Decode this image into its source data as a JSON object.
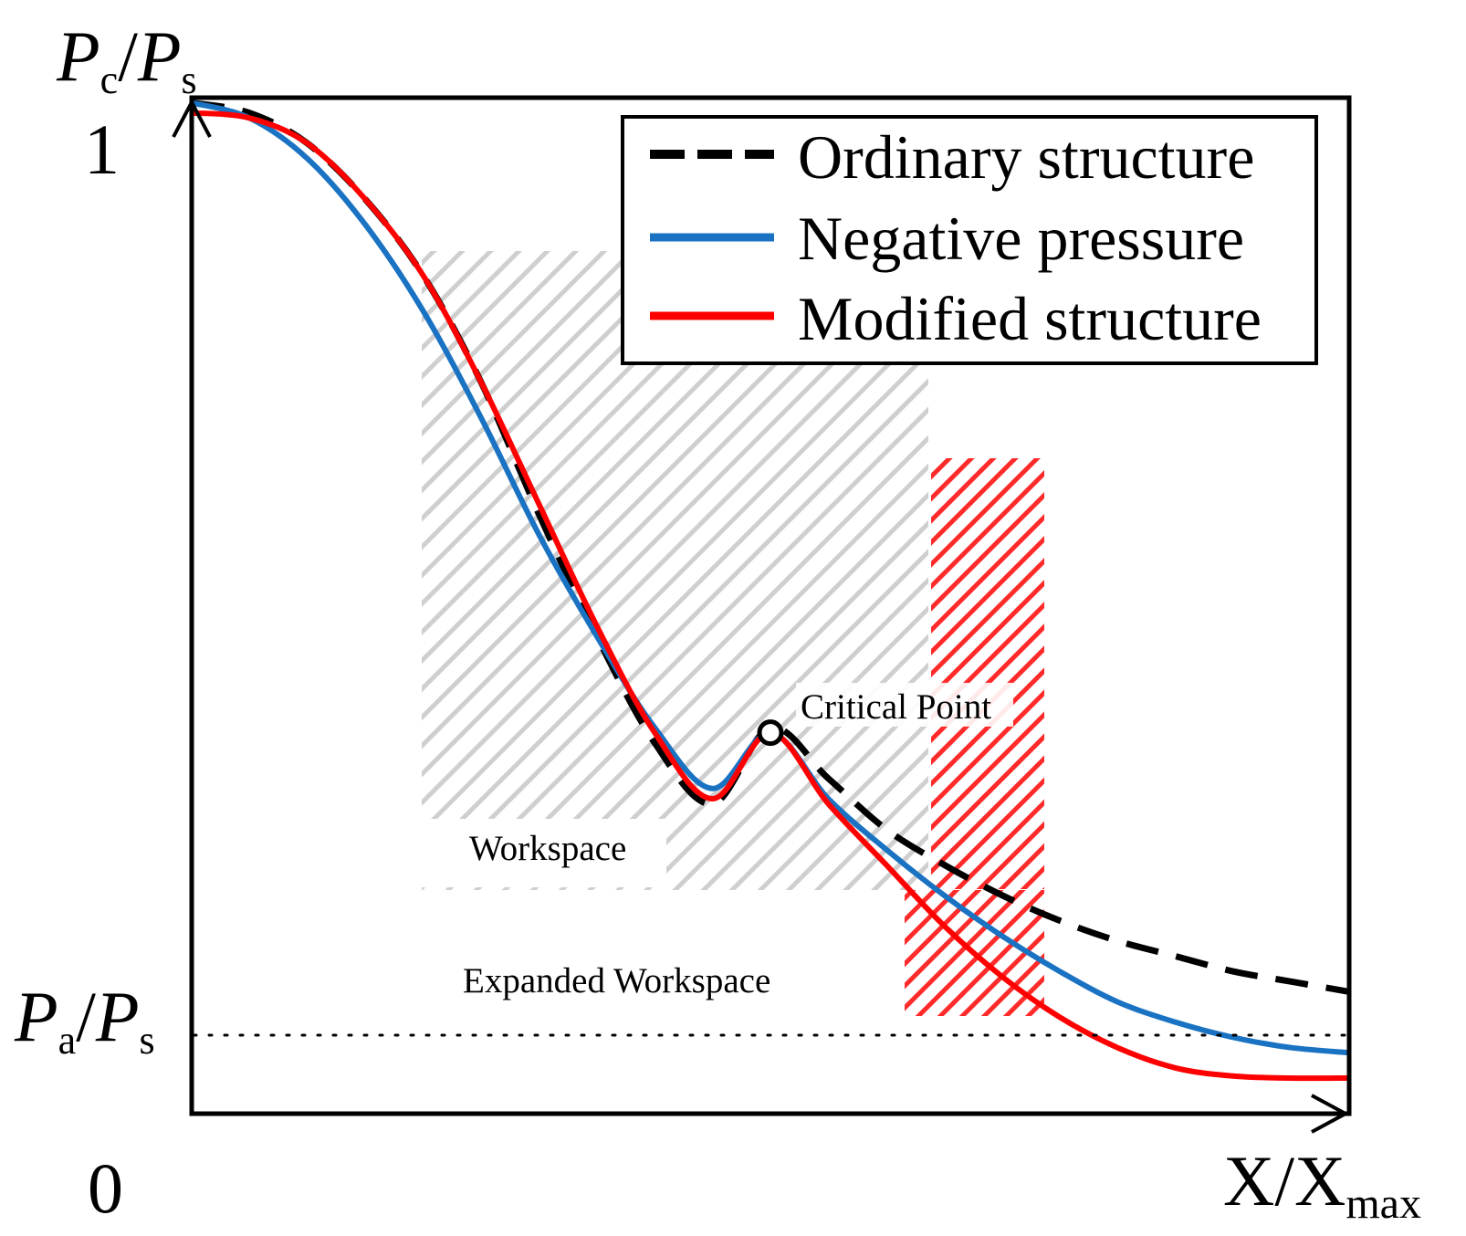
{
  "chart_data": {
    "type": "line",
    "title": "",
    "xlabel": "X/X",
    "xlabel_sub": "max",
    "ylabel_main": "P",
    "ylabel_sub": "c",
    "ylabel_slash": "/",
    "ylabel_main2": "P",
    "ylabel_sub2": "s",
    "xlim": [
      0,
      1
    ],
    "ylim": [
      0,
      1
    ],
    "y_tick_top": "1",
    "origin_label": "0",
    "reference_line": {
      "label_main": "P",
      "label_sub": "a",
      "label_slash": "/",
      "label_main2": "P",
      "label_sub2": "s",
      "y": 0.081,
      "style": "dotted"
    },
    "legend": {
      "placement": "top-right",
      "entries": [
        "Ordinary structure",
        "Negative pressure",
        "Modified structure"
      ]
    },
    "series": [
      {
        "name": "Ordinary structure",
        "color": "#000000",
        "dash": "dashed",
        "x": [
          0,
          0.05,
          0.1,
          0.15,
          0.2,
          0.25,
          0.3,
          0.35,
          0.4,
          0.45,
          0.5,
          0.55,
          0.6,
          0.65,
          0.7,
          0.75,
          0.8,
          0.85,
          0.9,
          0.95,
          1.0
        ],
        "y": [
          0.995,
          0.985,
          0.955,
          0.9,
          0.825,
          0.72,
          0.59,
          0.47,
          0.365,
          0.305,
          0.38,
          0.33,
          0.28,
          0.245,
          0.215,
          0.19,
          0.17,
          0.155,
          0.14,
          0.13,
          0.12
        ]
      },
      {
        "name": "Negative pressure",
        "color": "#1a72c2",
        "dash": "solid",
        "x": [
          0,
          0.05,
          0.1,
          0.15,
          0.2,
          0.25,
          0.3,
          0.35,
          0.4,
          0.45,
          0.5,
          0.55,
          0.6,
          0.65,
          0.7,
          0.75,
          0.8,
          0.85,
          0.9,
          0.95,
          1.0
        ],
        "y": [
          0.995,
          0.98,
          0.94,
          0.875,
          0.79,
          0.685,
          0.57,
          0.47,
          0.38,
          0.32,
          0.375,
          0.31,
          0.26,
          0.215,
          0.175,
          0.14,
          0.11,
          0.09,
          0.075,
          0.065,
          0.06
        ]
      },
      {
        "name": "Modified structure",
        "color": "#ff0000",
        "dash": "solid",
        "x": [
          0,
          0.05,
          0.1,
          0.15,
          0.2,
          0.25,
          0.3,
          0.35,
          0.4,
          0.45,
          0.5,
          0.55,
          0.6,
          0.65,
          0.7,
          0.75,
          0.8,
          0.85,
          0.9,
          0.95,
          1.0
        ],
        "y": [
          0.985,
          0.98,
          0.955,
          0.9,
          0.825,
          0.72,
          0.6,
          0.48,
          0.375,
          0.31,
          0.375,
          0.305,
          0.245,
          0.185,
          0.135,
          0.095,
          0.065,
          0.045,
          0.037,
          0.035,
          0.035
        ]
      }
    ],
    "critical_point": {
      "label": "Critical Point",
      "x": 0.5,
      "y": 0.375
    },
    "regions": [
      {
        "label": "Workspace",
        "x": [
          0.2,
          0.64
        ],
        "y": [
          0.23,
          0.88
        ],
        "color": "#c8c8c8"
      },
      {
        "label": "Expanded Workspace",
        "x": [
          0.62,
          0.74
        ],
        "y": [
          0.1,
          0.67
        ],
        "color": "#ff0000"
      }
    ]
  }
}
